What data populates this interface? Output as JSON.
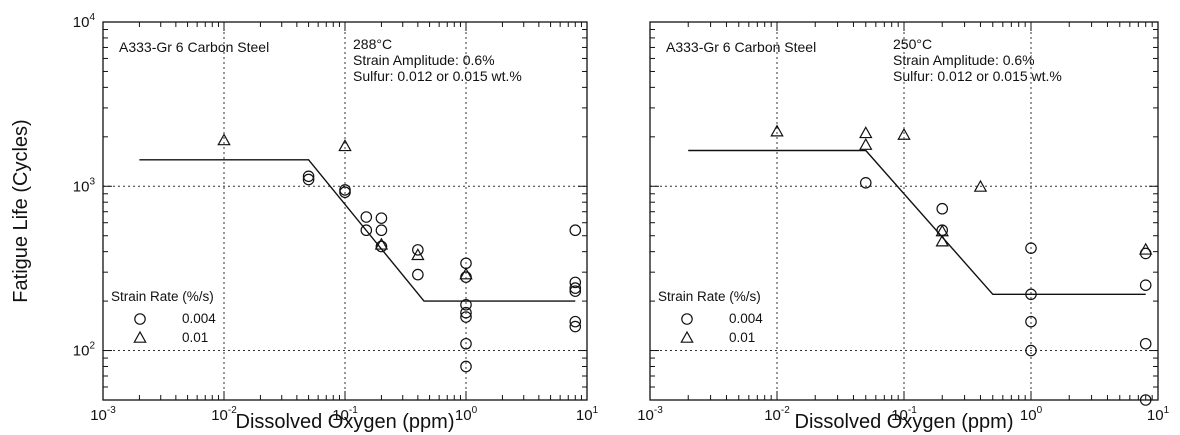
{
  "chart_data": [
    {
      "type": "scatter",
      "title": "",
      "xlabel": "Dissolved Oxygen (ppm)",
      "ylabel": "Fatigue Life (Cycles)",
      "x_scale": "log",
      "y_scale": "log",
      "xlim": [
        0.001,
        10
      ],
      "ylim": [
        50,
        10000
      ],
      "grid": "dotted at decades",
      "x_tick_labels": [
        {
          "base": "10",
          "exp": "-3"
        },
        {
          "base": "10",
          "exp": "-2"
        },
        {
          "base": "10",
          "exp": "-1"
        },
        {
          "base": "10",
          "exp": "0"
        },
        {
          "base": "10",
          "exp": "1"
        }
      ],
      "y_tick_labels": [
        {
          "base": "10",
          "exp": "2"
        },
        {
          "base": "10",
          "exp": "3"
        },
        {
          "base": "10",
          "exp": "4"
        }
      ],
      "annotations": {
        "material": "A333-Gr 6 Carbon Steel",
        "temperature": "288°C",
        "strain_amplitude": "Strain Amplitude: 0.6%",
        "sulfur": "Sulfur: 0.012 or 0.015 wt.%"
      },
      "legend": {
        "title": "Strain Rate (%/s)",
        "position": "bottom-left",
        "entries": [
          {
            "marker": "circle",
            "label": "0.004"
          },
          {
            "marker": "triangle",
            "label": "0.01"
          }
        ]
      },
      "series": [
        {
          "name": "0.004",
          "marker": "circle",
          "points": [
            [
              0.05,
              1150
            ],
            [
              0.05,
              1100
            ],
            [
              0.1,
              950
            ],
            [
              0.1,
              920
            ],
            [
              0.15,
              650
            ],
            [
              0.15,
              540
            ],
            [
              0.2,
              640
            ],
            [
              0.2,
              540
            ],
            [
              0.2,
              430
            ],
            [
              0.4,
              410
            ],
            [
              0.4,
              290
            ],
            [
              1.0,
              340
            ],
            [
              1.0,
              280
            ],
            [
              1.0,
              190
            ],
            [
              1.0,
              170
            ],
            [
              1.0,
              160
            ],
            [
              1.0,
              110
            ],
            [
              1.0,
              80
            ],
            [
              8.0,
              540
            ],
            [
              8.0,
              260
            ],
            [
              8.0,
              240
            ],
            [
              8.0,
              230
            ],
            [
              8.0,
              150
            ],
            [
              8.0,
              140
            ]
          ]
        },
        {
          "name": "0.01",
          "marker": "triangle",
          "points": [
            [
              0.01,
              1900
            ],
            [
              0.1,
              1750
            ],
            [
              0.2,
              440
            ],
            [
              0.4,
              380
            ],
            [
              1.0,
              290
            ]
          ]
        }
      ],
      "fit_line": {
        "points": [
          [
            0.002,
            1450
          ],
          [
            0.05,
            1450
          ],
          [
            0.45,
            200
          ],
          [
            8.0,
            200
          ]
        ]
      }
    },
    {
      "type": "scatter",
      "title": "",
      "xlabel": "Dissolved Oxygen (ppm)",
      "ylabel": "",
      "x_scale": "log",
      "y_scale": "log",
      "xlim": [
        0.001,
        10
      ],
      "ylim": [
        50,
        10000
      ],
      "grid": "dotted at decades",
      "x_tick_labels": [
        {
          "base": "10",
          "exp": "-3"
        },
        {
          "base": "10",
          "exp": "-2"
        },
        {
          "base": "10",
          "exp": "-1"
        },
        {
          "base": "10",
          "exp": "0"
        },
        {
          "base": "10",
          "exp": "1"
        }
      ],
      "y_tick_labels": [],
      "annotations": {
        "material": "A333-Gr 6 Carbon Steel",
        "temperature": "250°C",
        "strain_amplitude": "Strain Amplitude: 0.6%",
        "sulfur": "Sulfur: 0.012 or 0.015 wt.%"
      },
      "legend": {
        "title": "Strain Rate (%/s)",
        "position": "bottom-left",
        "entries": [
          {
            "marker": "circle",
            "label": "0.004"
          },
          {
            "marker": "triangle",
            "label": "0.01"
          }
        ]
      },
      "series": [
        {
          "name": "0.004",
          "marker": "circle",
          "points": [
            [
              0.05,
              1050
            ],
            [
              0.2,
              730
            ],
            [
              0.2,
              540
            ],
            [
              1.0,
              420
            ],
            [
              1.0,
              220
            ],
            [
              1.0,
              150
            ],
            [
              1.0,
              100
            ],
            [
              8.0,
              390
            ],
            [
              8.0,
              250
            ],
            [
              8.0,
              110
            ],
            [
              8.0,
              50
            ]
          ]
        },
        {
          "name": "0.01",
          "marker": "triangle",
          "points": [
            [
              0.01,
              2150
            ],
            [
              0.05,
              2100
            ],
            [
              0.05,
              1780
            ],
            [
              0.1,
              2050
            ],
            [
              0.2,
              530
            ],
            [
              0.2,
              460
            ],
            [
              0.4,
              990
            ],
            [
              8.0,
              410
            ]
          ]
        }
      ],
      "fit_line": {
        "points": [
          [
            0.002,
            1650
          ],
          [
            0.05,
            1650
          ],
          [
            0.5,
            220
          ],
          [
            8.0,
            220
          ]
        ]
      }
    }
  ]
}
